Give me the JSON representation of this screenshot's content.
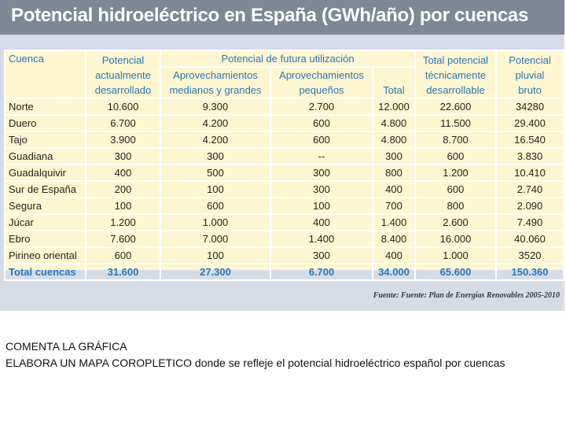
{
  "title": "Potencial hidroeléctrico en España (GWh/año) por cuencas",
  "headers": {
    "cuenca": "Cuenca",
    "potencial_actual": [
      "Potencial",
      "actualmente",
      "desarrollado"
    ],
    "futura": "Potencial de futura utilización",
    "medianos": [
      "Aprovechamientos",
      "medianos y grandes"
    ],
    "pequenos": [
      "Aprovechamientos",
      "pequeños"
    ],
    "total": "Total",
    "total_tecnico": [
      "Total potencial",
      "técnicamente",
      "desarrollable"
    ],
    "pluvial": [
      "Potencial",
      "pluvial",
      "bruto"
    ]
  },
  "rows": [
    [
      "Norte",
      "10.600",
      "9.300",
      "2.700",
      "12.000",
      "22.600",
      "34280"
    ],
    [
      "Duero",
      "6.700",
      "4.200",
      "600",
      "4.800",
      "11.500",
      "29.400"
    ],
    [
      "Tajo",
      "3.900",
      "4.200",
      "600",
      "4.800",
      "8.700",
      "16.540"
    ],
    [
      "Guadiana",
      "300",
      "300",
      "--",
      "300",
      "600",
      "3.830"
    ],
    [
      "Guadalquivir",
      "400",
      "500",
      "300",
      "800",
      "1.200",
      "10.410"
    ],
    [
      "Sur de España",
      "200",
      "100",
      "300",
      "400",
      "600",
      "2.740"
    ],
    [
      "Segura",
      "100",
      "600",
      "100",
      "700",
      "800",
      "2.090"
    ],
    [
      "Júcar",
      "1.200",
      "1.000",
      "400",
      "1.400",
      "2.600",
      "7.490"
    ],
    [
      "Ebro",
      "7.600",
      "7.000",
      "1.400",
      "8.400",
      "16.000",
      "40.060"
    ],
    [
      "Pirineo oriental",
      "600",
      "100",
      "300",
      "400",
      "1.000",
      "3520"
    ]
  ],
  "total_row": [
    "Total cuencas",
    "31.600",
    "27.300",
    "6.700",
    "34.000",
    "65.600",
    "150.360"
  ],
  "source": "Fuente: Fuente: Plan de Energías Renovables 2005-2010",
  "notes": {
    "line1": "COMENTA LA GRÁFICA",
    "line2": "ELABORA UN MAPA COROPLETICO  donde se refleje el potencial hidroeléctrico español por cuencas"
  }
}
